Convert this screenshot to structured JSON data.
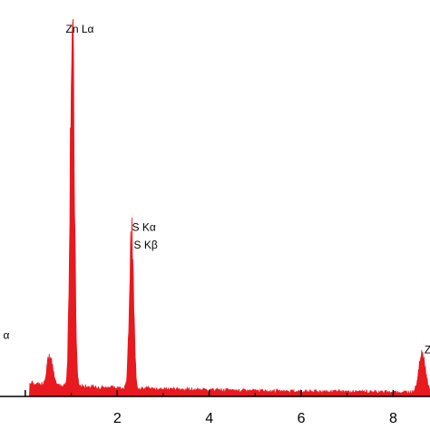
{
  "chart_data": {
    "type": "area",
    "title": "",
    "xlabel": "",
    "ylabel": "",
    "xlim": [
      -0.55,
      8.8
    ],
    "ylim": [
      0,
      100
    ],
    "grid": false,
    "legend": "none",
    "fill_color": "#e8191f",
    "x_ticks": [
      {
        "value": 0,
        "label": ""
      },
      {
        "value": 2,
        "label": "2"
      },
      {
        "value": 4,
        "label": "4"
      },
      {
        "value": 6,
        "label": "6"
      },
      {
        "value": 8,
        "label": "8"
      }
    ],
    "peaks": [
      {
        "x": 0.53,
        "y": 8,
        "width": 0.06
      },
      {
        "x": 1.02,
        "y": 99,
        "width": 0.045
      },
      {
        "x": 2.31,
        "y": 42,
        "width": 0.045
      },
      {
        "x": 8.63,
        "y": 11,
        "width": 0.07
      }
    ],
    "annotations": [
      {
        "text": "α",
        "x": -0.48,
        "y": 16
      },
      {
        "text": "Zn Lα",
        "x": 0.88,
        "y": 101
      },
      {
        "text": "S Kα",
        "x": 2.32,
        "y": 46
      },
      {
        "text": "S Kβ",
        "x": 2.36,
        "y": 41
      },
      {
        "text": "Zn K",
        "x": 8.68,
        "y": 12
      }
    ]
  }
}
